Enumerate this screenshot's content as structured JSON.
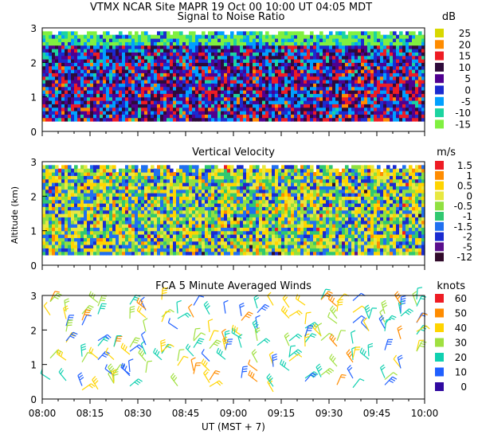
{
  "header": {
    "line1": "VTMX   NCAR Site   MAPR 19 Oct 00   10:00 UT   04:05   MDT",
    "line2": "Signal to Noise Ratio"
  },
  "chart_data": [
    {
      "type": "heatmap",
      "title": "Signal to Noise Ratio",
      "unit": "dB",
      "y_ticks": [
        "0",
        "1",
        "2",
        "3"
      ],
      "ylim": [
        0,
        3
      ],
      "data_range_km": [
        0.3,
        2.9
      ],
      "legend": {
        "labels": [
          "25",
          "20",
          "15",
          "10",
          "5",
          "0",
          "-5",
          "-10",
          "-15"
        ],
        "colors": [
          "#d8d800",
          "#ff8c00",
          "#ee1c24",
          "#2e0a3a",
          "#500090",
          "#1a2bd0",
          "#00a0ff",
          "#1cd4a0",
          "#80f040"
        ]
      }
    },
    {
      "type": "heatmap",
      "title": "Vertical Velocity",
      "unit": "m/s",
      "ylabel": "Altitude (km)",
      "y_ticks": [
        "0",
        "1",
        "2",
        "3"
      ],
      "ylim": [
        0,
        3
      ],
      "data_range_km": [
        0.3,
        2.9
      ],
      "legend": {
        "labels": [
          "1.5",
          "1",
          "0.5",
          "0",
          "-0.5",
          "-1",
          "-1.5",
          "-2",
          "-5",
          "-12"
        ],
        "colors": [
          "#ee1c24",
          "#ff8c00",
          "#ffd400",
          "#e8e840",
          "#90e040",
          "#30c870",
          "#2070f0",
          "#1a2bd0",
          "#5a0e8c",
          "#300a2a"
        ]
      }
    },
    {
      "type": "barbs",
      "title": "FCA 5 Minute Averaged Winds",
      "unit": "knots",
      "y_ticks": [
        "0",
        "1",
        "2",
        "3"
      ],
      "ylim": [
        0,
        3
      ],
      "data_range_km": [
        0.2,
        2.9
      ],
      "legend": {
        "labels": [
          "60",
          "50",
          "40",
          "30",
          "20",
          "10",
          "0"
        ],
        "colors": [
          "#ee1c24",
          "#ff8c00",
          "#ffd400",
          "#a0e040",
          "#10d0b0",
          "#2060ff",
          "#300aa0"
        ]
      }
    }
  ],
  "x_axis": {
    "ticks": [
      "08:00",
      "08:15",
      "08:30",
      "08:45",
      "09:00",
      "09:15",
      "09:30",
      "09:45",
      "10:00"
    ],
    "label": "UT   (MST + 7)"
  }
}
